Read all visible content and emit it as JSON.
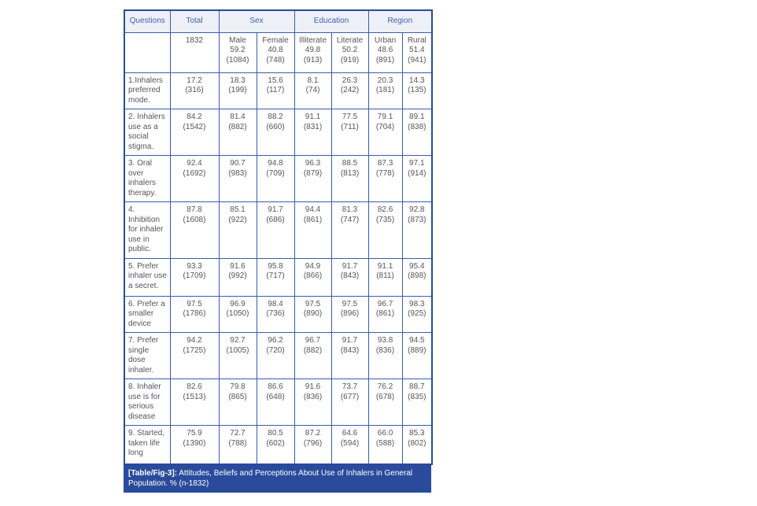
{
  "colors": {
    "inner_border": "#3a5dab",
    "outer_border": "#2a4b9c",
    "header_background": "#eef0f8",
    "header_text": "#4263a8",
    "body_text": "#55565a",
    "caption_background": "#2a4b9c",
    "caption_text": "#ffffff"
  },
  "table": {
    "header_groups": [
      {
        "label": "Questions",
        "span": 1
      },
      {
        "label": "Total",
        "span": 1
      },
      {
        "label": "Sex",
        "span": 2
      },
      {
        "label": "Education",
        "span": 2
      },
      {
        "label": "Region",
        "span": 2
      }
    ],
    "subheader": [
      {
        "key": "questions-blank",
        "lines": []
      },
      {
        "key": "total-n",
        "lines": [
          "1832"
        ]
      },
      {
        "key": "male",
        "lines": [
          "Male",
          "59.2",
          "(1084)"
        ]
      },
      {
        "key": "female",
        "lines": [
          "Female",
          "40.8",
          "(748)"
        ]
      },
      {
        "key": "illiterate",
        "lines": [
          "Illiterate",
          "49.8",
          "(913)"
        ]
      },
      {
        "key": "literate",
        "lines": [
          "Literate",
          "50.2",
          "(919)"
        ]
      },
      {
        "key": "urban",
        "lines": [
          "Urban",
          "48.6",
          "(891)"
        ]
      },
      {
        "key": "rural",
        "lines": [
          "Rural",
          "51.4",
          "(941)"
        ]
      }
    ],
    "rows": [
      {
        "question": "1.Inhalers preferred mode.",
        "cells": [
          [
            "17.2",
            "(316)"
          ],
          [
            "18.3",
            "(199)"
          ],
          [
            "15.6",
            "(117)"
          ],
          [
            "8.1",
            "(74)"
          ],
          [
            "26.3",
            "(242)"
          ],
          [
            "20.3",
            "(181)"
          ],
          [
            "14.3",
            "(135)"
          ]
        ]
      },
      {
        "question": "2. Inhalers use as a social stigma.",
        "cells": [
          [
            "84.2",
            "(1542)"
          ],
          [
            "81.4",
            "(882)"
          ],
          [
            "88.2",
            "(660)"
          ],
          [
            "91.1",
            "(831)"
          ],
          [
            "77.5",
            "(711)"
          ],
          [
            "79.1",
            "(704)"
          ],
          [
            "89.1",
            "(838)"
          ]
        ]
      },
      {
        "question": "3. Oral over inhalers therapy.",
        "cells": [
          [
            "92.4",
            "(1692)"
          ],
          [
            "90.7",
            "(983)"
          ],
          [
            "94.8",
            "(709)"
          ],
          [
            "96.3",
            "(879)"
          ],
          [
            "88.5",
            "(813)"
          ],
          [
            "87.3",
            "(778)"
          ],
          [
            "97.1",
            "(914)"
          ]
        ]
      },
      {
        "question": "4. Inhibition for inhaler use in public.",
        "cells": [
          [
            "87.8",
            "(1608)"
          ],
          [
            "85.1",
            "(922)"
          ],
          [
            "91.7",
            "(686)"
          ],
          [
            "94.4",
            "(861)"
          ],
          [
            "81.3",
            "(747)"
          ],
          [
            "82.6",
            "(735)"
          ],
          [
            "92.8",
            "(873)"
          ]
        ]
      },
      {
        "question": "5. Prefer inhaler use a secret.",
        "cells": [
          [
            "93.3",
            "(1709)"
          ],
          [
            "91.6",
            "(992)"
          ],
          [
            "95.8",
            "(717)"
          ],
          [
            "94.9",
            "(866)"
          ],
          [
            "91.7",
            "(843)"
          ],
          [
            "91.1",
            "(811)"
          ],
          [
            "95.4",
            "(898)"
          ]
        ]
      },
      {
        "question": "6. Prefer a smaller device",
        "cells": [
          [
            "97.5",
            "(1786)"
          ],
          [
            "96.9",
            "(1050)"
          ],
          [
            "98.4",
            "(736)"
          ],
          [
            "97.5",
            "(890)"
          ],
          [
            "97.5",
            "(896)"
          ],
          [
            "96.7",
            "(861)"
          ],
          [
            "98.3",
            "(925)"
          ]
        ]
      },
      {
        "question": "7. Prefer single dose inhaler.",
        "cells": [
          [
            "94.2",
            "(1725)"
          ],
          [
            "92.7",
            "(1005)"
          ],
          [
            "96.2",
            "(720)"
          ],
          [
            "96.7",
            "(882)"
          ],
          [
            "91.7",
            "(843)"
          ],
          [
            "93.8",
            "(836)"
          ],
          [
            "94.5",
            "(889)"
          ]
        ]
      },
      {
        "question": "8. Inhaler use is for serious disease",
        "cells": [
          [
            "82.6",
            "(1513)"
          ],
          [
            "79.8",
            "(865)"
          ],
          [
            "86.6",
            "(648)"
          ],
          [
            "91.6",
            "(836)"
          ],
          [
            "73.7",
            "(677)"
          ],
          [
            "76.2",
            "(678)"
          ],
          [
            "88.7",
            "(835)"
          ]
        ]
      },
      {
        "question": "9. Started, taken life long",
        "cells": [
          [
            "75.9",
            "(1390)"
          ],
          [
            "72.7",
            "(788)"
          ],
          [
            "80.5",
            "(602)"
          ],
          [
            "87.2",
            "(796)"
          ],
          [
            "64.6",
            "(594)"
          ],
          [
            "66.0",
            "(588)"
          ],
          [
            "85.3",
            "(802)"
          ]
        ]
      }
    ]
  },
  "caption": {
    "label": "[Table/Fig-3]:",
    "text": "Attitudes, Beliefs and Perceptions About Use of Inhalers in General Population. % (n-1832)"
  }
}
